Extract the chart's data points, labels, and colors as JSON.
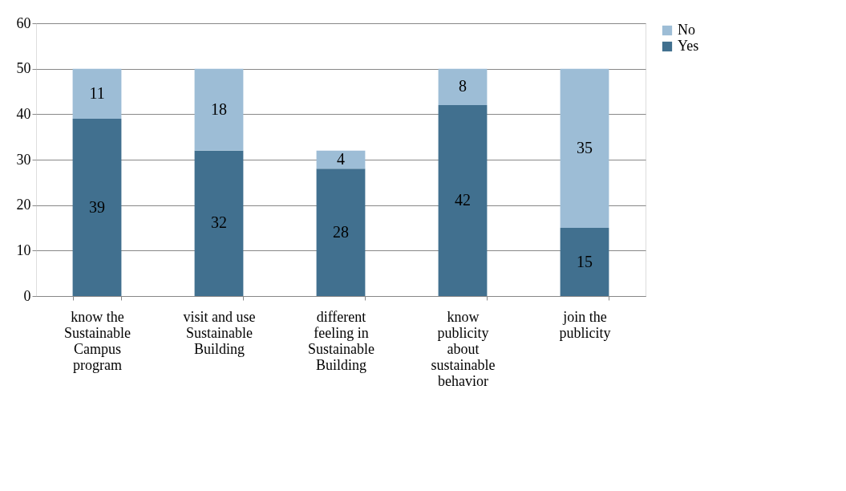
{
  "chart_data": {
    "type": "bar",
    "stacked": true,
    "categories": [
      "know the Sustainable Campus program",
      "visit and use Sustainable Building",
      "different feeling in Sustainable Building",
      "know publicity about sustainable behavior",
      "join the publicity"
    ],
    "series": [
      {
        "name": "Yes",
        "color": "#41708f",
        "values": [
          39,
          32,
          28,
          42,
          15
        ]
      },
      {
        "name": "No",
        "color": "#9dbdd6",
        "values": [
          11,
          18,
          4,
          8,
          35
        ]
      }
    ],
    "ylim": [
      0,
      60
    ],
    "yticks": [
      0,
      10,
      20,
      30,
      40,
      50,
      60
    ],
    "grid": "y",
    "legend": "right",
    "data_labels": true
  }
}
